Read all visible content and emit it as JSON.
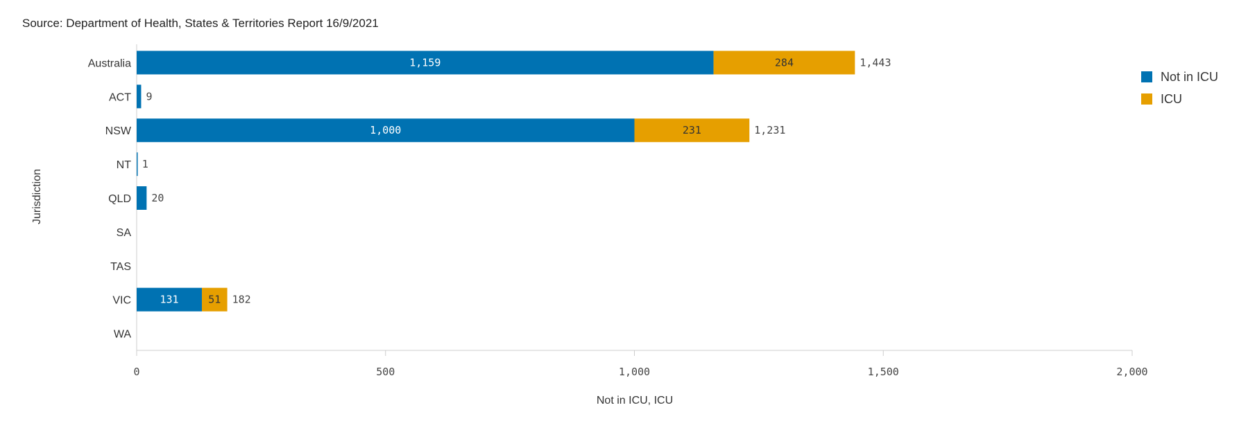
{
  "source_note": "Source: Department of Health, States & Territories Report 16/9/2021",
  "chart_data": {
    "type": "bar",
    "orientation": "horizontal",
    "stacked": true,
    "categories": [
      "Australia",
      "ACT",
      "NSW",
      "NT",
      "QLD",
      "SA",
      "TAS",
      "VIC",
      "WA"
    ],
    "series": [
      {
        "name": "Not in ICU",
        "color": "#0072B2",
        "values": [
          1159,
          9,
          1000,
          1,
          20,
          0,
          0,
          131,
          0
        ],
        "labels": [
          "1,159",
          "",
          "1,000",
          "",
          "",
          "",
          "",
          "131",
          ""
        ]
      },
      {
        "name": "ICU",
        "color": "#E69F00",
        "values": [
          284,
          0,
          231,
          0,
          0,
          0,
          0,
          51,
          0
        ],
        "labels": [
          "284",
          "",
          "231",
          "",
          "",
          "",
          "",
          "51",
          ""
        ]
      }
    ],
    "totals": [
      "1,443",
      "9",
      "1,231",
      "1",
      "20",
      "",
      "",
      "182",
      ""
    ],
    "xlabel": "Not in ICU, ICU",
    "ylabel": "Jurisdiction",
    "xlim": [
      0,
      2000
    ],
    "xticks": [
      0,
      500,
      1000,
      1500,
      2000
    ],
    "xtick_labels": [
      "0",
      "500",
      "1,000",
      "1,500",
      "2,000"
    ],
    "grid": false,
    "legend_position": "top-right"
  }
}
